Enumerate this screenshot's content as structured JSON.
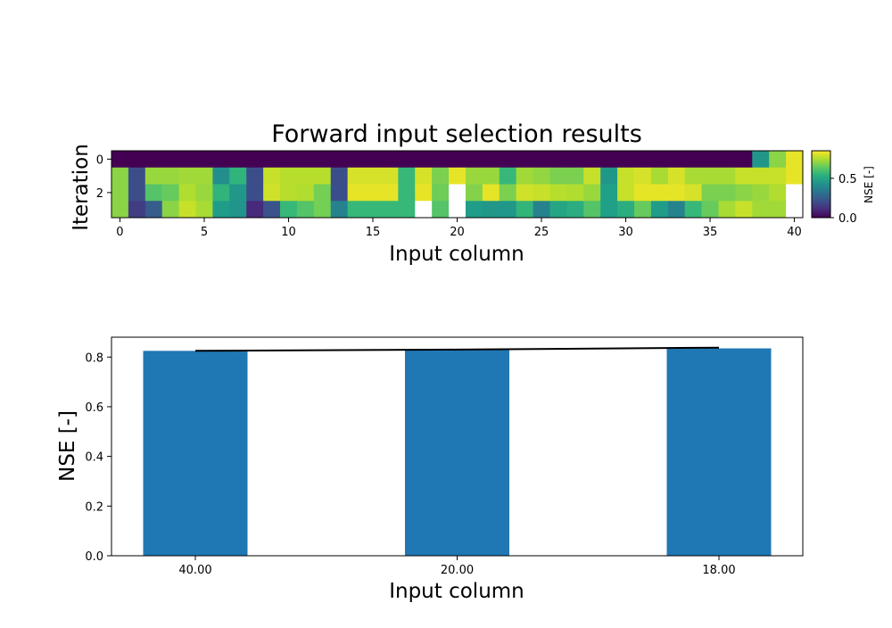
{
  "chart_data": [
    {
      "type": "heatmap",
      "title": "Forward input selection results",
      "xlabel": "Input column",
      "ylabel": "Iteration",
      "x_ticks": [
        "0",
        "5",
        "10",
        "15",
        "20",
        "25",
        "30",
        "35",
        "40"
      ],
      "y_ticks": [
        "0",
        "2"
      ],
      "colorbar": {
        "label": "NSE [-]",
        "ticks": [
          "0.0",
          "0.5"
        ],
        "range": [
          0,
          0.85
        ],
        "colormap": "viridis"
      },
      "columns": 41,
      "rows": 4,
      "values": [
        [
          0,
          0,
          0,
          0,
          0,
          0,
          0,
          0,
          0,
          0,
          0,
          0,
          0,
          0,
          0,
          0,
          0,
          0,
          0,
          0,
          0,
          0,
          0,
          0,
          0,
          0,
          0,
          0,
          0,
          0,
          0,
          0,
          0,
          0,
          0,
          0,
          0,
          0,
          0.45,
          0.7,
          0.82
        ],
        [
          0.7,
          0.2,
          0.72,
          0.72,
          0.73,
          0.73,
          0.42,
          0.55,
          0.2,
          0.78,
          0.76,
          0.76,
          0.76,
          0.2,
          0.8,
          0.8,
          0.8,
          0.57,
          0.8,
          0.68,
          0.82,
          0.72,
          0.72,
          0.57,
          0.73,
          0.71,
          0.68,
          0.68,
          0.78,
          0.45,
          0.78,
          0.8,
          0.74,
          0.8,
          0.74,
          0.74,
          0.74,
          0.78,
          0.78,
          0.78,
          0.82
        ],
        [
          0.7,
          0.2,
          0.62,
          0.65,
          0.75,
          0.72,
          0.55,
          0.45,
          0.2,
          0.79,
          0.76,
          0.75,
          0.67,
          0.2,
          0.82,
          0.82,
          0.82,
          0.57,
          0.82,
          0.66,
          null,
          0.69,
          0.82,
          0.68,
          0.79,
          0.78,
          0.76,
          0.75,
          0.72,
          0.48,
          0.78,
          0.82,
          0.82,
          0.82,
          0.8,
          0.68,
          0.68,
          0.7,
          0.72,
          0.75,
          null
        ],
        [
          0.7,
          0.15,
          0.25,
          0.7,
          0.78,
          0.74,
          0.47,
          0.44,
          0.1,
          0.22,
          0.57,
          0.62,
          0.67,
          0.38,
          0.57,
          0.57,
          0.57,
          0.57,
          null,
          0.62,
          null,
          0.47,
          0.45,
          0.45,
          0.56,
          0.38,
          0.5,
          0.53,
          0.62,
          0.48,
          0.53,
          0.65,
          0.47,
          0.38,
          0.57,
          0.65,
          0.74,
          0.78,
          0.73,
          0.73,
          null
        ]
      ]
    },
    {
      "type": "bar",
      "xlabel": "Input column",
      "ylabel": "NSE [-]",
      "categories": [
        "40.00",
        "20.00",
        "18.00"
      ],
      "values": [
        0.825,
        0.83,
        0.835
      ],
      "line_values": [
        0.825,
        0.83,
        0.838
      ],
      "ylim": [
        0,
        0.88
      ],
      "y_ticks": [
        "0.0",
        "0.2",
        "0.4",
        "0.6",
        "0.8"
      ],
      "bar_color": "#1f77b4",
      "line_color": "#000000"
    }
  ]
}
